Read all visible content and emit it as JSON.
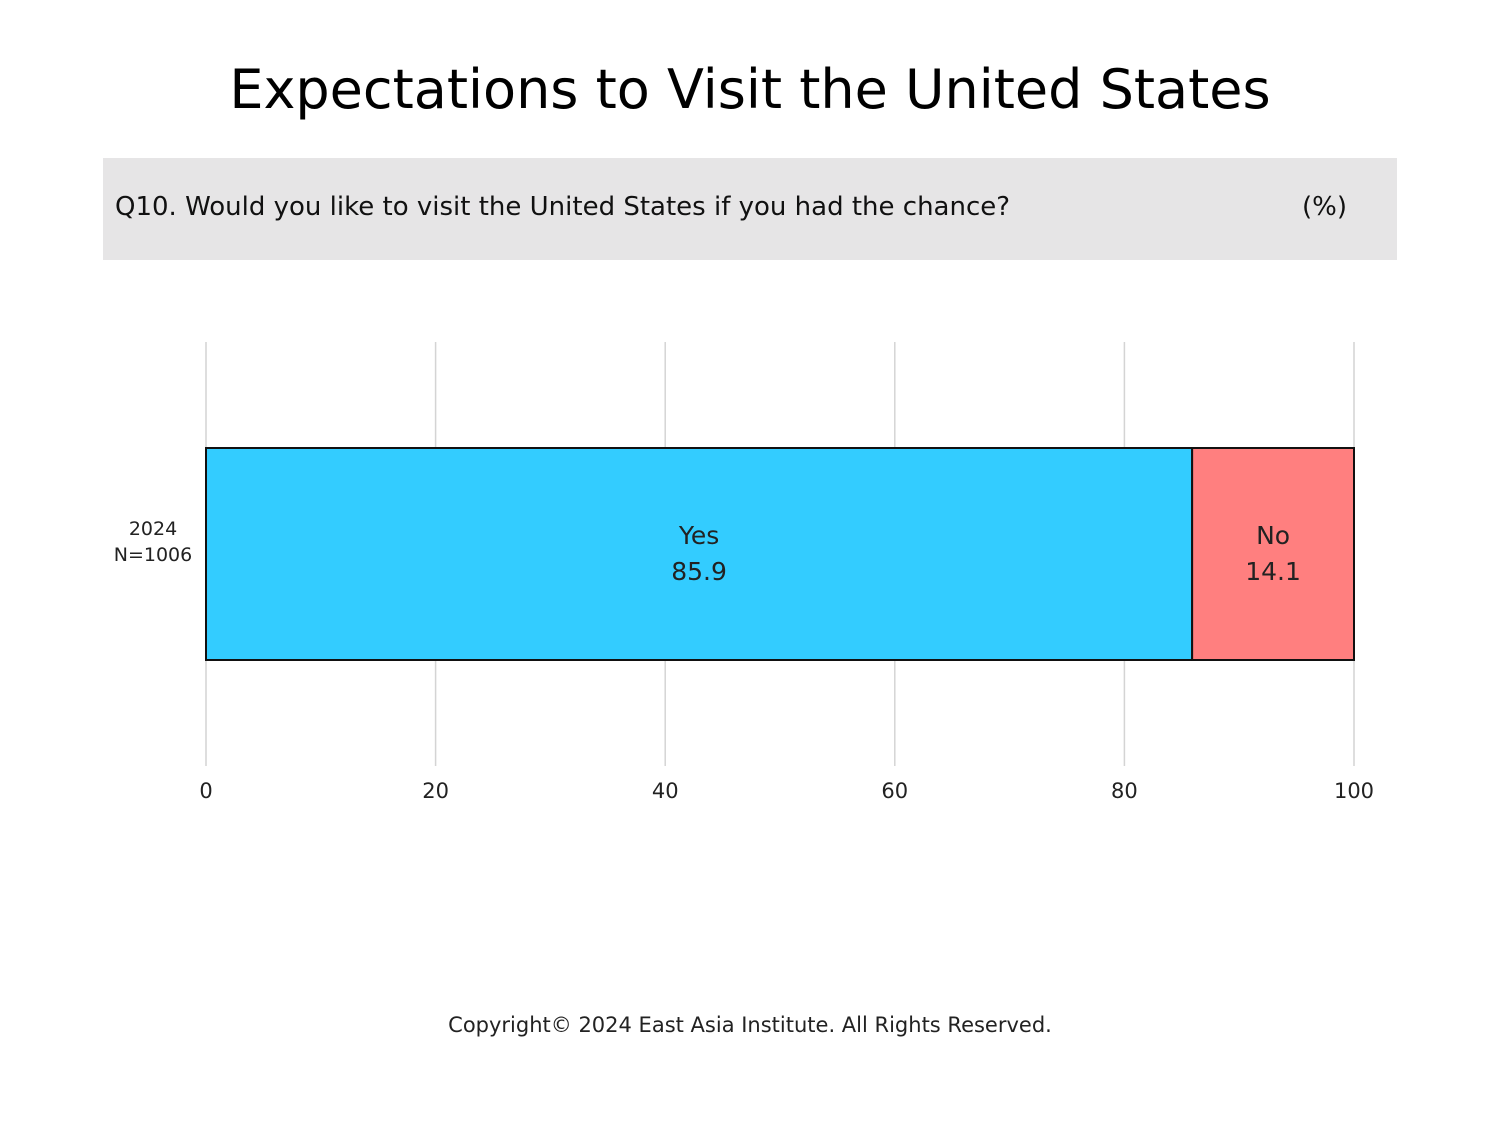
{
  "title": "Expectations to Visit the United States",
  "question": "Q10. Would you like to visit the United States if you had the chance?",
  "unit": "(%)",
  "copyright": "Copyright© 2024 East Asia Institute. All Rights Reserved.",
  "chart_data": {
    "type": "bar",
    "orientation": "horizontal",
    "stacked": true,
    "categories": [
      [
        "2024",
        "N=1006"
      ]
    ],
    "series": [
      {
        "name": "Yes",
        "values": [
          85.9
        ],
        "color": "#33ccff"
      },
      {
        "name": "No",
        "values": [
          14.1
        ],
        "color": "#ff7f7f"
      }
    ],
    "xlim": [
      0,
      100
    ],
    "xticks": [
      0,
      20,
      40,
      60,
      80,
      100
    ],
    "grid": true,
    "legend": "none (segment labels inside bars)"
  }
}
